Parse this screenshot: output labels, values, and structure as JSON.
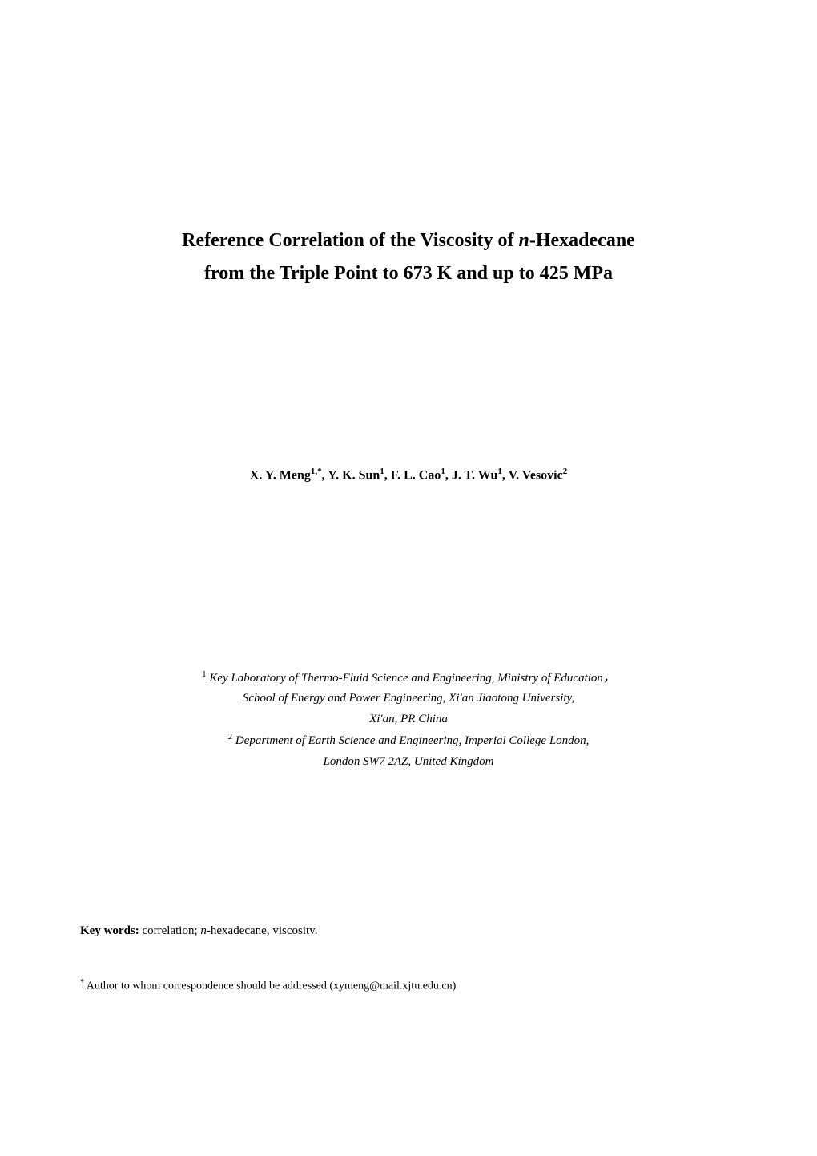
{
  "title": {
    "line1_prefix": "Reference Correlation of the Viscosity of ",
    "line1_italic": "n",
    "line1_suffix": "-Hexadecane",
    "line2": "from the Triple Point to 673 K and up to 425 MPa",
    "fontsize": 24,
    "fontweight": "bold",
    "color": "#000000"
  },
  "authors": {
    "a1_name": "X. Y. Meng",
    "a1_sup": "1,*",
    "a2_name": "Y. K. Sun",
    "a2_sup": "1",
    "a3_name": "F. L. Cao",
    "a3_sup": "1",
    "a4_name": "J. T. Wu",
    "a4_sup": "1",
    "a5_name": "V. Vesovic",
    "a5_sup": "2",
    "separator": ", ",
    "fontsize": 16,
    "fontweight": "bold"
  },
  "affiliations": {
    "aff1_sup": "1",
    "aff1_line1": " Key Laboratory of Thermo-Fluid Science and Engineering, Ministry of Education，",
    "aff1_line2": "School of Energy and Power Engineering, Xi'an Jiaotong University,",
    "aff1_line3": "Xi'an, PR China",
    "aff2_sup": "2",
    "aff2_line1": " Department of Earth Science and Engineering, Imperial College London,",
    "aff2_line2": "London SW7 2AZ, United Kingdom",
    "fontsize": 15,
    "fontstyle": "italic"
  },
  "keywords": {
    "label": "Key words: ",
    "text_prefix": "correlation; ",
    "text_italic": "n",
    "text_suffix": "-hexadecane, viscosity.",
    "fontsize": 15
  },
  "footnote": {
    "marker": "*",
    "text": " Author to whom correspondence should be addressed (xymeng@mail.xjtu.edu.cn)",
    "fontsize": 14
  },
  "page": {
    "background_color": "#ffffff",
    "text_color": "#000000",
    "font_family": "Times New Roman"
  }
}
